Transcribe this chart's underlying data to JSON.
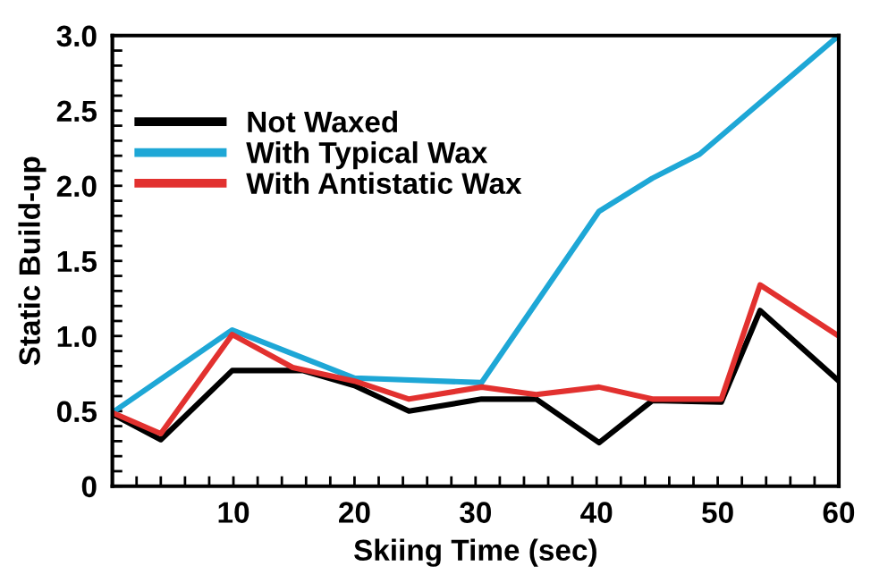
{
  "chart_data": {
    "type": "line",
    "xlabel": "Skiing Time (sec)",
    "ylabel": "Static Build-up",
    "legend": "top left",
    "grid": false,
    "marker": "none",
    "line_style": "solid",
    "xlim": [
      0,
      60
    ],
    "ylim": [
      0,
      3.0
    ],
    "xticks": [
      {
        "value": 2,
        "label": null
      },
      {
        "value": 4,
        "label": null
      },
      {
        "value": 6,
        "label": null
      },
      {
        "value": 8,
        "label": null
      },
      10,
      {
        "value": 12,
        "label": null
      },
      {
        "value": 14,
        "label": null
      },
      {
        "value": 16,
        "label": null
      },
      {
        "value": 18,
        "label": null
      },
      20,
      {
        "value": 22,
        "label": null
      },
      {
        "value": 24,
        "label": null
      },
      {
        "value": 26,
        "label": null
      },
      {
        "value": 28,
        "label": null
      },
      30,
      {
        "value": 32,
        "label": null
      },
      {
        "value": 34,
        "label": null
      },
      {
        "value": 36,
        "label": null
      },
      {
        "value": 38,
        "label": null
      },
      40,
      {
        "value": 42,
        "label": null
      },
      {
        "value": 44,
        "label": null
      },
      {
        "value": 46,
        "label": null
      },
      {
        "value": 48,
        "label": null
      },
      50,
      {
        "value": 52,
        "label": null
      },
      {
        "value": 54,
        "label": null
      },
      {
        "value": 56,
        "label": null
      },
      {
        "value": 58,
        "label": null
      },
      60
    ],
    "yticks": [
      0,
      {
        "value": 0.1,
        "label": null
      },
      {
        "value": 0.2,
        "label": null
      },
      {
        "value": 0.3,
        "label": null
      },
      {
        "value": 0.4,
        "label": null
      },
      0.5,
      {
        "value": 0.6,
        "label": null
      },
      {
        "value": 0.7,
        "label": null
      },
      {
        "value": 0.8,
        "label": null
      },
      {
        "value": 0.9,
        "label": null
      },
      {
        "value": 1.0,
        "label": "1.0"
      },
      {
        "value": 1.1,
        "label": null
      },
      {
        "value": 1.2,
        "label": null
      },
      {
        "value": 1.3,
        "label": null
      },
      {
        "value": 1.4,
        "label": null
      },
      1.5,
      {
        "value": 1.6,
        "label": null
      },
      {
        "value": 1.7,
        "label": null
      },
      {
        "value": 1.8,
        "label": null
      },
      {
        "value": 1.9,
        "label": null
      },
      {
        "value": 2.0,
        "label": "2.0"
      },
      {
        "value": 2.1,
        "label": null
      },
      {
        "value": 2.2,
        "label": null
      },
      {
        "value": 2.3,
        "label": null
      },
      {
        "value": 2.4,
        "label": null
      },
      2.5,
      {
        "value": 2.6,
        "label": null
      },
      {
        "value": 2.7,
        "label": null
      },
      {
        "value": 2.8,
        "label": null
      },
      {
        "value": 2.9,
        "label": null
      },
      {
        "value": 3.0,
        "label": "3.0"
      }
    ],
    "series": [
      {
        "name": "Not Waxed",
        "color": "#000000",
        "x": [
          0,
          4,
          9.9,
          15.7,
          20,
          24.5,
          30.5,
          35,
          40.2,
          44.6,
          50.3,
          53.5,
          60
        ],
        "values": [
          0.48,
          0.31,
          0.77,
          0.77,
          0.67,
          0.5,
          0.58,
          0.58,
          0.29,
          0.57,
          0.56,
          1.17,
          0.7
        ]
      },
      {
        "name": "With Typical Wax",
        "color": "#1ea7d6",
        "x": [
          0,
          9.9,
          20,
          30.5,
          40.2,
          44.6,
          48.5,
          60
        ],
        "values": [
          0.49,
          1.04,
          0.72,
          0.69,
          1.83,
          2.05,
          2.21,
          3.0
        ]
      },
      {
        "name": "With Antistatic Wax",
        "color": "#e2312f",
        "x": [
          0,
          4,
          9.9,
          14.9,
          20,
          24.5,
          30.5,
          35,
          40.2,
          44.6,
          50.3,
          53.5,
          60
        ],
        "values": [
          0.49,
          0.35,
          1.01,
          0.79,
          0.7,
          0.58,
          0.66,
          0.61,
          0.66,
          0.58,
          0.58,
          1.34,
          1.0
        ]
      }
    ]
  }
}
